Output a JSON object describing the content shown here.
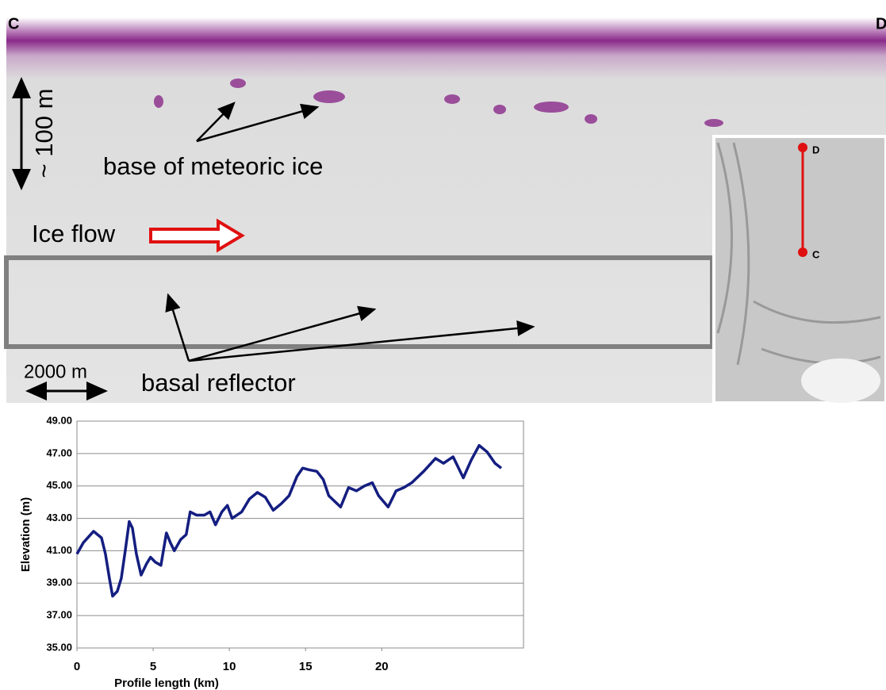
{
  "radargram": {
    "left_label": "C",
    "right_label": "D",
    "depth_scale": "~ 100 m",
    "meteoric_label": "base of meteoric ice",
    "flow_label": "Ice flow",
    "basal_label": "basal reflector",
    "length_scale": "2000 m",
    "inset_top": "D",
    "inset_bottom": "C"
  },
  "chart_data": {
    "type": "line",
    "x_label": "Profile length (km)",
    "y_label": "Elevation (m)",
    "xlim": [
      0,
      29.3
    ],
    "ylim": [
      35,
      49
    ],
    "xticks": [
      0,
      5,
      10,
      15,
      20
    ],
    "yticks": [
      {
        "value": 35,
        "label": "35.00"
      },
      {
        "value": 37,
        "label": "37.00"
      },
      {
        "value": 39,
        "label": "39.00"
      },
      {
        "value": 41,
        "label": "41.00"
      },
      {
        "value": 43,
        "label": "43.00"
      },
      {
        "value": 45,
        "label": "45.00"
      },
      {
        "value": 47,
        "label": "47.00"
      },
      {
        "value": 49,
        "label": "49.00"
      }
    ],
    "grid": true,
    "x": [
      0,
      0.42,
      1.09,
      1.61,
      1.87,
      2.13,
      2.34,
      2.65,
      2.91,
      3.17,
      3.43,
      3.64,
      3.9,
      4.21,
      4.57,
      4.83,
      5.14,
      5.51,
      5.87,
      6.13,
      6.39,
      6.81,
      7.17,
      7.43,
      7.84,
      8.36,
      8.73,
      9.09,
      9.51,
      9.87,
      10.18,
      10.81,
      11.32,
      11.84,
      12.36,
      12.88,
      13.4,
      13.92,
      14.44,
      14.81,
      15.22,
      15.74,
      16.16,
      16.52,
      17.3,
      17.82,
      18.34,
      18.86,
      19.38,
      19.79,
      20.42,
      20.94,
      21.45,
      21.97,
      22.75,
      23.53,
      24.05,
      24.68,
      25.35,
      25.87,
      26.39,
      26.91,
      27.43,
      27.84
    ],
    "series": [
      {
        "color": "#141e80",
        "values": [
          40.8,
          41.5,
          42.2,
          41.8,
          40.8,
          39.3,
          38.2,
          38.5,
          39.3,
          41,
          42.8,
          42.4,
          40.8,
          39.5,
          40.2,
          40.6,
          40.3,
          40.1,
          42.1,
          41.5,
          41,
          41.7,
          42,
          43.4,
          43.2,
          43.2,
          43.4,
          42.6,
          43.4,
          43.8,
          43,
          43.4,
          44.2,
          44.6,
          44.3,
          43.5,
          43.9,
          44.4,
          45.6,
          46.1,
          46,
          45.9,
          45.4,
          44.4,
          43.7,
          44.9,
          44.7,
          45,
          45.2,
          44.4,
          43.7,
          44.7,
          44.9,
          45.2,
          45.9,
          46.7,
          46.4,
          46.8,
          45.5,
          46.6,
          47.5,
          47.1,
          46.4,
          46.1
        ]
      }
    ]
  }
}
